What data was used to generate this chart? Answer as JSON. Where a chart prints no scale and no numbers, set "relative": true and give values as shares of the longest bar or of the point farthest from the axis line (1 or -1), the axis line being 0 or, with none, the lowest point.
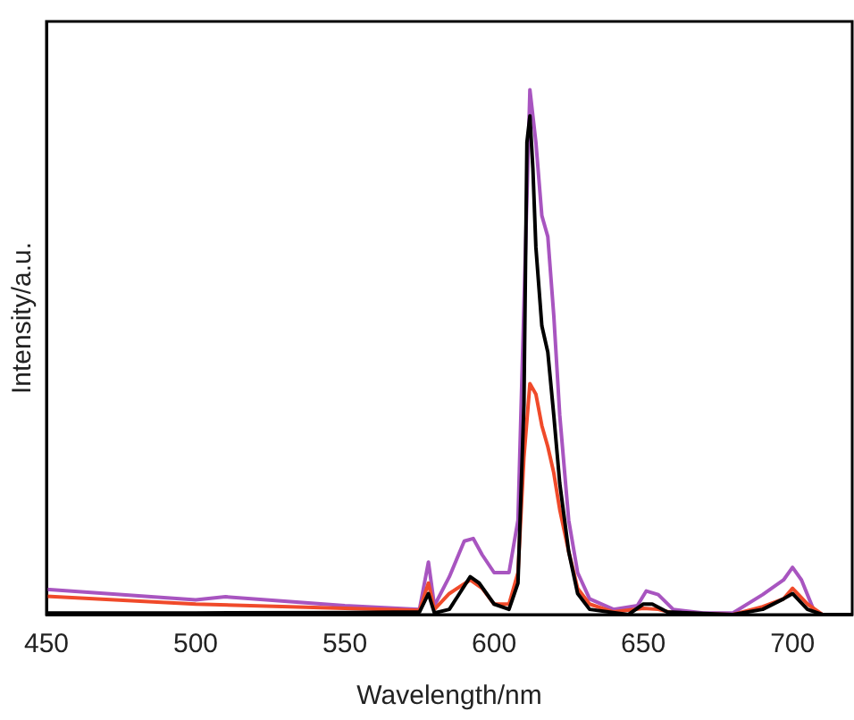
{
  "chart_data": {
    "type": "line",
    "xlabel": "Wavelength/nm",
    "ylabel": "Intensity/a.u.",
    "relative": true,
    "xlim": [
      450,
      720
    ],
    "xticks": [
      450,
      500,
      550,
      600,
      650,
      700
    ],
    "grid": false,
    "legend": false,
    "marker": "none",
    "line_style": "solid",
    "series": [
      {
        "color": "#000000",
        "x": [
          450,
          500,
          550,
          575,
          578,
          580,
          585,
          592,
          595,
          600,
          605,
          608,
          610,
          611,
          612,
          613,
          614,
          616,
          618,
          620,
          622,
          625,
          628,
          632,
          645,
          650,
          653,
          658,
          680,
          690,
          697,
          700,
          705,
          710,
          720
        ],
        "values": [
          0.003,
          0.003,
          0.004,
          0.005,
          0.04,
          0.003,
          0.01,
          0.072,
          0.06,
          0.02,
          0.01,
          0.06,
          0.4,
          0.9,
          0.95,
          0.85,
          0.7,
          0.55,
          0.5,
          0.38,
          0.25,
          0.12,
          0.04,
          0.01,
          0,
          0.02,
          0.02,
          0.005,
          0,
          0.01,
          0.03,
          0.04,
          0.01,
          0,
          0
        ]
      },
      {
        "color": "#f04a2a",
        "x": [
          450,
          500,
          550,
          575,
          578,
          580,
          585,
          592,
          596,
          600,
          605,
          608,
          610,
          612,
          614,
          616,
          618,
          620,
          622,
          625,
          628,
          632,
          640,
          650,
          655,
          660,
          680,
          690,
          697,
          700,
          705,
          710,
          720
        ],
        "values": [
          0.035,
          0.02,
          0.012,
          0.008,
          0.06,
          0.01,
          0.04,
          0.066,
          0.05,
          0.02,
          0.02,
          0.08,
          0.3,
          0.44,
          0.42,
          0.36,
          0.32,
          0.27,
          0.2,
          0.12,
          0.05,
          0.02,
          0.005,
          0.012,
          0.01,
          0.003,
          0,
          0.015,
          0.03,
          0.05,
          0.02,
          0,
          0
        ]
      },
      {
        "color": "#a855c0",
        "x": [
          450,
          500,
          510,
          550,
          575,
          578,
          580,
          585,
          590,
          593,
          596,
          600,
          605,
          608,
          610,
          612,
          614,
          616,
          618,
          620,
          622,
          625,
          628,
          632,
          640,
          648,
          651,
          655,
          660,
          670,
          680,
          690,
          697,
          700,
          703,
          707,
          710,
          720
        ],
        "values": [
          0.048,
          0.028,
          0.034,
          0.017,
          0.01,
          0.1,
          0.017,
          0.072,
          0.14,
          0.145,
          0.114,
          0.08,
          0.08,
          0.18,
          0.59,
          1,
          0.9,
          0.76,
          0.72,
          0.57,
          0.38,
          0.18,
          0.08,
          0.03,
          0.01,
          0.017,
          0.045,
          0.038,
          0.01,
          0.003,
          0.003,
          0.038,
          0.066,
          0.09,
          0.066,
          0.01,
          0,
          0
        ]
      }
    ]
  }
}
